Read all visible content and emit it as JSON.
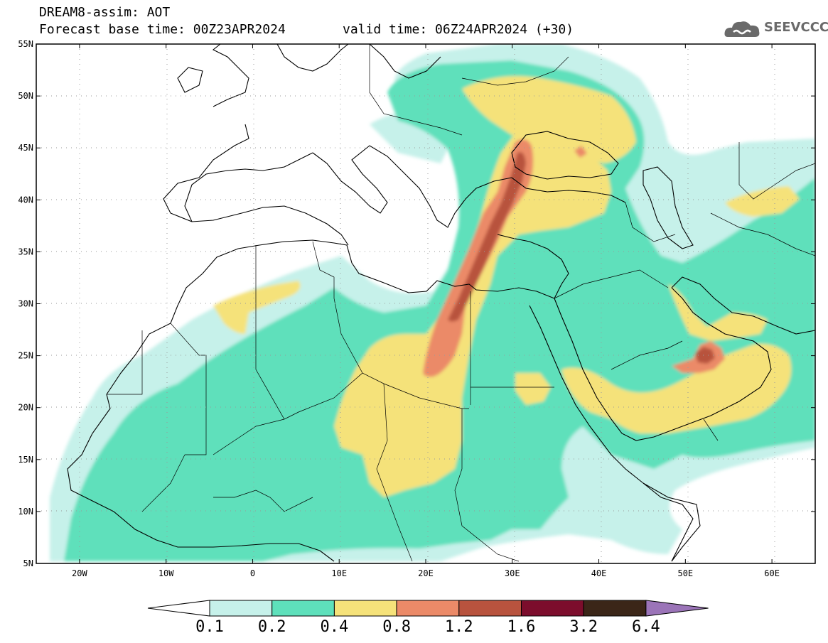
{
  "header": {
    "model": "DREAM8-assim: AOT",
    "base_time": "Forecast base time: 00Z23APR2024",
    "valid_time": "valid time: 06Z24APR2024 (+30)"
  },
  "logo": {
    "text": "SEEVCCC",
    "icon": "cloud-icon"
  },
  "map": {
    "lon_range": [
      -25,
      65
    ],
    "lat_range": [
      5,
      55
    ],
    "lat_labels": [
      "55N",
      "50N",
      "45N",
      "40N",
      "35N",
      "30N",
      "25N",
      "20N",
      "15N",
      "10N",
      "5N"
    ],
    "lon_labels": [
      "20W",
      "10W",
      "0",
      "10E",
      "20E",
      "30E",
      "40E",
      "50E",
      "60E"
    ]
  },
  "colorbar": {
    "labels": [
      "0.1",
      "0.2",
      "0.4",
      "0.8",
      "1.2",
      "1.6",
      "3.2",
      "6.4"
    ],
    "colors": [
      "#c6f1ea",
      "#5ee0bb",
      "#f5e27a",
      "#eb8a68",
      "#b8533e",
      "#7c0d2c",
      "#3b2618",
      "#9b74b8"
    ],
    "under_color": "#ffffff"
  }
}
